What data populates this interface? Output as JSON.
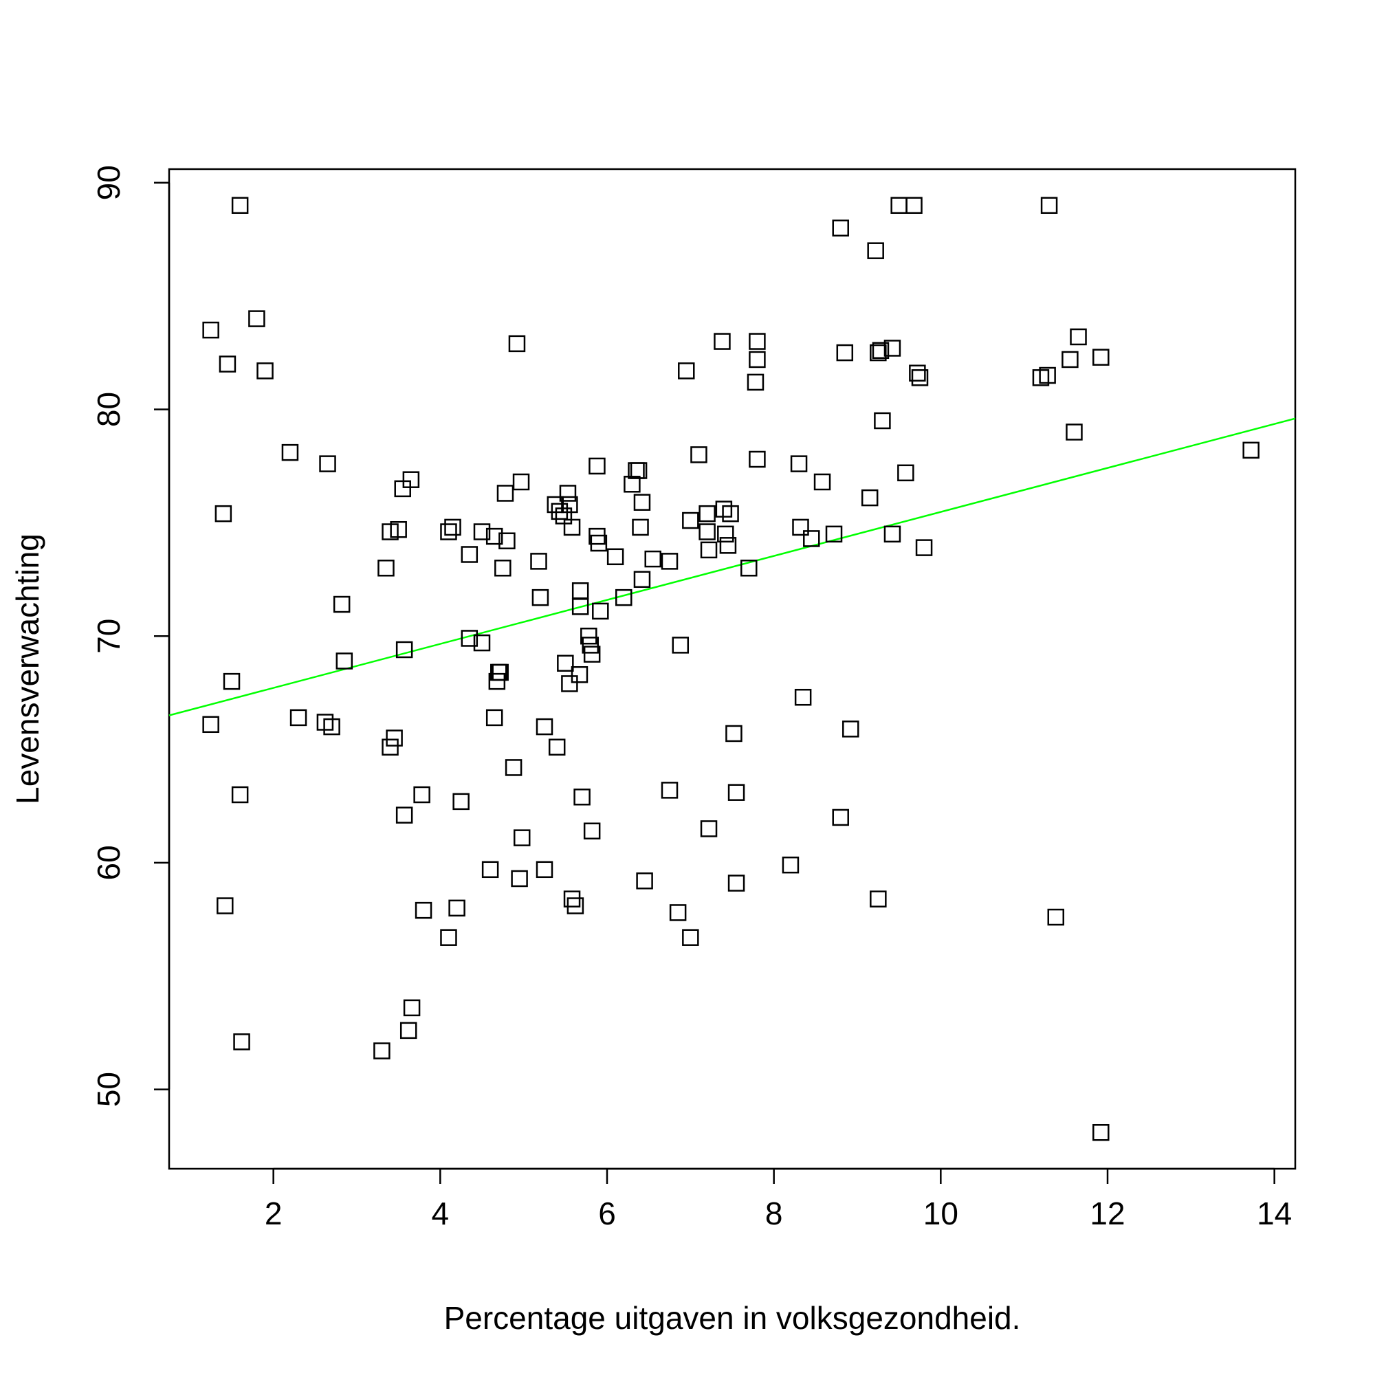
{
  "chart_data": {
    "type": "scatter",
    "title": "",
    "xlabel": "Percentage uitgaven in volksgezondheid.",
    "ylabel": "Levensverwachting",
    "xlim": [
      0.75,
      14.25
    ],
    "ylim": [
      46.5,
      90.6
    ],
    "x_ticks": [
      2,
      4,
      6,
      8,
      10,
      12,
      14
    ],
    "y_ticks": [
      50,
      60,
      70,
      80,
      90
    ],
    "x_tick_labels": [
      "2",
      "4",
      "6",
      "8",
      "10",
      "12",
      "14"
    ],
    "y_tick_labels": [
      "50",
      "60",
      "70",
      "80",
      "90"
    ],
    "grid": false,
    "legend": "none",
    "marker": "open-square",
    "marker_color": "#000000",
    "fit_line": {
      "type": "regression",
      "color": "#00ff00",
      "y_at_xmin": 66.5,
      "y_at_xmax": 79.6
    },
    "points": [
      [
        1.6,
        89.0
      ],
      [
        1.25,
        83.5
      ],
      [
        1.8,
        84.0
      ],
      [
        1.45,
        82.0
      ],
      [
        1.9,
        81.7
      ],
      [
        2.2,
        78.1
      ],
      [
        2.65,
        77.6
      ],
      [
        1.4,
        75.4
      ],
      [
        1.5,
        68.0
      ],
      [
        1.25,
        66.1
      ],
      [
        1.6,
        63.0
      ],
      [
        1.42,
        58.1
      ],
      [
        1.62,
        52.1
      ],
      [
        2.3,
        66.4
      ],
      [
        2.62,
        66.2
      ],
      [
        2.7,
        66.0
      ],
      [
        2.82,
        71.4
      ],
      [
        2.85,
        68.9
      ],
      [
        3.35,
        73.0
      ],
      [
        3.4,
        74.6
      ],
      [
        3.5,
        74.7
      ],
      [
        3.55,
        76.5
      ],
      [
        3.65,
        76.9
      ],
      [
        3.57,
        69.4
      ],
      [
        3.4,
        65.1
      ],
      [
        3.45,
        65.5
      ],
      [
        3.57,
        62.1
      ],
      [
        3.78,
        63.0
      ],
      [
        3.8,
        57.9
      ],
      [
        3.3,
        51.7
      ],
      [
        3.62,
        52.6
      ],
      [
        3.66,
        53.6
      ],
      [
        4.1,
        74.6
      ],
      [
        4.15,
        74.8
      ],
      [
        4.35,
        73.6
      ],
      [
        4.35,
        69.9
      ],
      [
        4.5,
        74.6
      ],
      [
        4.5,
        69.7
      ],
      [
        4.25,
        62.7
      ],
      [
        4.2,
        58.0
      ],
      [
        4.1,
        56.7
      ],
      [
        4.6,
        59.7
      ],
      [
        4.65,
        74.4
      ],
      [
        4.75,
        73.0
      ],
      [
        4.8,
        74.2
      ],
      [
        4.78,
        76.3
      ],
      [
        4.7,
        68.4
      ],
      [
        4.68,
        68.0
      ],
      [
        4.72,
        68.4
      ],
      [
        4.65,
        66.4
      ],
      [
        4.88,
        64.2
      ],
      [
        4.92,
        82.9
      ],
      [
        4.97,
        76.8
      ],
      [
        4.95,
        59.3
      ],
      [
        4.98,
        61.1
      ],
      [
        5.18,
        73.3
      ],
      [
        5.2,
        71.7
      ],
      [
        5.25,
        66.0
      ],
      [
        5.25,
        59.7
      ],
      [
        5.38,
        75.8
      ],
      [
        5.43,
        75.5
      ],
      [
        5.48,
        75.3
      ],
      [
        5.53,
        76.3
      ],
      [
        5.55,
        75.8
      ],
      [
        5.58,
        74.8
      ],
      [
        5.4,
        65.1
      ],
      [
        5.5,
        68.8
      ],
      [
        5.55,
        67.9
      ],
      [
        5.58,
        58.4
      ],
      [
        5.62,
        58.1
      ],
      [
        5.68,
        72.0
      ],
      [
        5.68,
        71.3
      ],
      [
        5.67,
        68.3
      ],
      [
        5.7,
        62.9
      ],
      [
        5.78,
        70.0
      ],
      [
        5.8,
        69.6
      ],
      [
        5.82,
        69.2
      ],
      [
        5.82,
        61.4
      ],
      [
        5.88,
        77.5
      ],
      [
        5.88,
        74.4
      ],
      [
        5.9,
        74.1
      ],
      [
        5.92,
        71.1
      ],
      [
        6.1,
        73.5
      ],
      [
        6.2,
        71.7
      ],
      [
        6.3,
        76.7
      ],
      [
        6.35,
        77.3
      ],
      [
        6.38,
        77.3
      ],
      [
        6.4,
        74.8
      ],
      [
        6.42,
        75.9
      ],
      [
        6.42,
        72.5
      ],
      [
        6.45,
        59.2
      ],
      [
        6.55,
        73.4
      ],
      [
        6.75,
        73.3
      ],
      [
        6.75,
        63.2
      ],
      [
        6.85,
        57.8
      ],
      [
        6.88,
        69.6
      ],
      [
        6.95,
        81.7
      ],
      [
        7.0,
        75.1
      ],
      [
        7.0,
        56.7
      ],
      [
        7.1,
        78.0
      ],
      [
        7.2,
        75.4
      ],
      [
        7.2,
        74.6
      ],
      [
        7.22,
        73.8
      ],
      [
        7.22,
        61.5
      ],
      [
        7.38,
        83.0
      ],
      [
        7.4,
        75.6
      ],
      [
        7.42,
        74.5
      ],
      [
        7.45,
        74.0
      ],
      [
        7.48,
        75.4
      ],
      [
        7.52,
        65.7
      ],
      [
        7.55,
        63.1
      ],
      [
        7.55,
        59.1
      ],
      [
        7.7,
        73.0
      ],
      [
        7.8,
        83.0
      ],
      [
        7.8,
        82.2
      ],
      [
        7.78,
        81.2
      ],
      [
        7.8,
        77.8
      ],
      [
        8.2,
        59.9
      ],
      [
        8.3,
        77.6
      ],
      [
        8.32,
        74.8
      ],
      [
        8.35,
        67.3
      ],
      [
        8.45,
        74.3
      ],
      [
        8.58,
        76.8
      ],
      [
        8.72,
        74.5
      ],
      [
        8.8,
        88.0
      ],
      [
        8.85,
        82.5
      ],
      [
        8.8,
        62.0
      ],
      [
        8.92,
        65.9
      ],
      [
        9.15,
        76.1
      ],
      [
        9.22,
        87.0
      ],
      [
        9.25,
        82.5
      ],
      [
        9.28,
        82.6
      ],
      [
        9.3,
        79.5
      ],
      [
        9.25,
        58.4
      ],
      [
        9.42,
        82.7
      ],
      [
        9.42,
        74.5
      ],
      [
        9.5,
        89.0
      ],
      [
        9.58,
        77.2
      ],
      [
        9.68,
        89.0
      ],
      [
        9.72,
        81.6
      ],
      [
        9.75,
        81.4
      ],
      [
        9.8,
        73.9
      ],
      [
        11.2,
        81.4
      ],
      [
        11.28,
        81.5
      ],
      [
        11.3,
        89.0
      ],
      [
        11.38,
        57.6
      ],
      [
        11.55,
        82.2
      ],
      [
        11.6,
        79.0
      ],
      [
        11.65,
        83.2
      ],
      [
        11.92,
        82.3
      ],
      [
        11.92,
        48.1
      ],
      [
        13.72,
        78.2
      ]
    ]
  }
}
